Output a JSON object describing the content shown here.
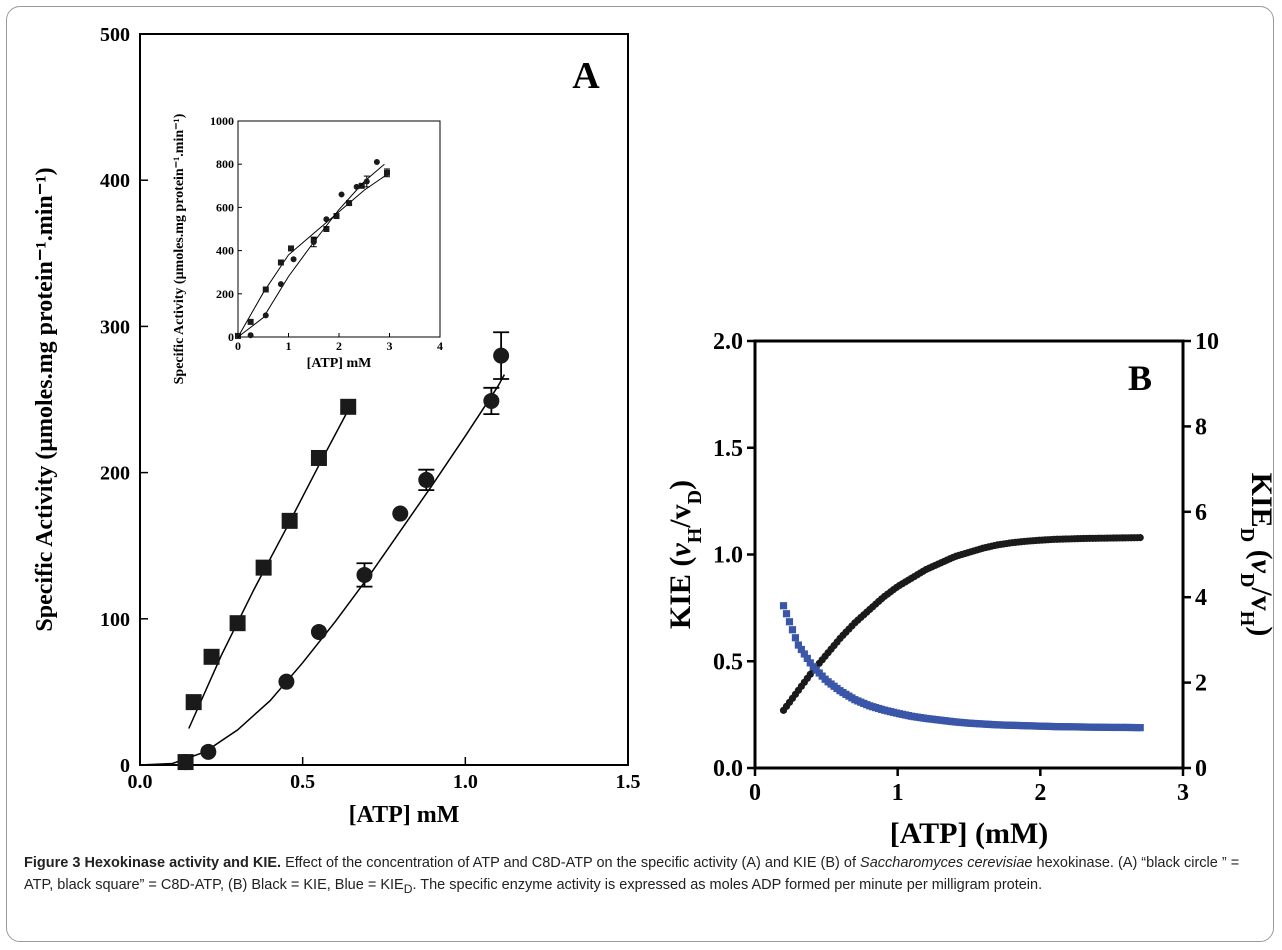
{
  "caption": {
    "label": "Figure 3",
    "title": "Hexokinase activity and KIE",
    "sep": ".",
    "p1": " Effect of the concentration of ATP and C8D-ATP on the specific activity (A) and KIE (B) of ",
    "species": "Saccharomyces cerevisiae",
    "p2": " hexokinase. (A) “black circle ” = ATP, black square” = C8D-ATP, (B) Black = KIE, Blue = KIE",
    "sub_d": "D",
    "p3": ". The specific enzyme activity is expressed as moles ADP formed per minute per milligram protein."
  },
  "chart_data": [
    {
      "id": "A",
      "type": "scatter",
      "panel_label": "A",
      "xlabel": "[ATP] mM",
      "ylabel": "Specific Activity (μmoles.mg protein⁻¹.min⁻¹)",
      "xlim": [
        0.0,
        1.5
      ],
      "ylim": [
        0,
        500
      ],
      "xticks": [
        0.0,
        0.5,
        1.0,
        1.5
      ],
      "xtick_labels": [
        "0.0",
        "0.5",
        "1.0",
        "1.5"
      ],
      "yticks": [
        0,
        100,
        200,
        300,
        400,
        500
      ],
      "ytick_labels": [
        "0",
        "100",
        "200",
        "300",
        "400",
        "500"
      ],
      "series": [
        {
          "marker": "square",
          "x": [
            0.14,
            0.165,
            0.22,
            0.3,
            0.38,
            0.46,
            0.55,
            0.64
          ],
          "y": [
            2,
            43,
            74,
            97,
            135,
            167,
            210,
            245
          ],
          "fit_x": [
            0.15,
            0.25,
            0.35,
            0.45,
            0.55,
            0.65
          ],
          "fit_y": [
            25,
            75,
            120,
            162,
            205,
            247
          ]
        },
        {
          "marker": "circle",
          "x": [
            0.14,
            0.21,
            0.45,
            0.55,
            0.69,
            0.8,
            0.88,
            1.08,
            1.11
          ],
          "y": [
            2,
            9,
            57,
            91,
            130,
            172,
            195,
            249,
            280
          ],
          "err": [
            0,
            0,
            0,
            0,
            8,
            0,
            7,
            9,
            16
          ],
          "fit_x": [
            0.0,
            0.1,
            0.2,
            0.3,
            0.4,
            0.5,
            0.6,
            0.7,
            0.8,
            0.9,
            1.0,
            1.1,
            1.12
          ],
          "fit_y": [
            0,
            1,
            9,
            24,
            44,
            70,
            98,
            128,
            160,
            192,
            225,
            259,
            267
          ]
        }
      ],
      "inset": {
        "type": "scatter",
        "xlabel": "[ATP] mM",
        "ylabel": "Specific Activity (μmoles.mg protein⁻¹.min⁻¹)",
        "xlim": [
          0,
          4
        ],
        "ylim": [
          0,
          1000
        ],
        "xticks": [
          0,
          1,
          2,
          3,
          4
        ],
        "xtick_labels": [
          "0",
          "1",
          "2",
          "3",
          "4"
        ],
        "yticks": [
          0,
          200,
          400,
          600,
          800,
          1000
        ],
        "ytick_labels": [
          "0",
          "200",
          "400",
          "600",
          "800",
          "1000"
        ],
        "series": [
          {
            "marker": "square",
            "x": [
              0.0,
              0.25,
              0.55,
              0.85,
              1.05,
              1.5,
              1.75,
              1.95,
              2.2,
              2.45,
              2.95
            ],
            "y": [
              5,
              70,
              220,
              345,
              410,
              450,
              500,
              560,
              620,
              700,
              760
            ],
            "err": [
              0,
              0,
              0,
              0,
              0,
              0,
              0,
              0,
              0,
              0,
              18
            ],
            "fit_x": [
              0.0,
              0.5,
              1.0,
              1.5,
              2.0,
              2.5,
              3.0
            ],
            "fit_y": [
              0,
              205,
              380,
              480,
              580,
              680,
              760
            ]
          },
          {
            "marker": "circle",
            "x": [
              0.25,
              0.55,
              0.85,
              1.1,
              1.5,
              1.75,
              2.05,
              2.35,
              2.55,
              2.75
            ],
            "y": [
              8,
              100,
              245,
              360,
              440,
              545,
              660,
              695,
              720,
              810
            ],
            "err": [
              0,
              0,
              0,
              0,
              22,
              0,
              0,
              0,
              25,
              0
            ],
            "fit_x": [
              0.0,
              0.5,
              1.0,
              1.5,
              2.0,
              2.5,
              2.9
            ],
            "fit_y": [
              0,
              90,
              280,
              440,
              590,
              720,
              800
            ]
          }
        ]
      }
    },
    {
      "id": "B",
      "type": "scatter",
      "panel_label": "B",
      "xlabel": "[ATP] (mM)",
      "ylabel_left": "KIE (v_H/v_D)",
      "ylabel_right": "KIE_D (v_D/v_H)",
      "xlim": [
        0,
        3
      ],
      "ylim_left": [
        0.0,
        2.0
      ],
      "ylim_right": [
        0,
        10
      ],
      "xticks": [
        0,
        1,
        2,
        3
      ],
      "xtick_labels": [
        "0",
        "1",
        "2",
        "3"
      ],
      "yticks_left": [
        0.0,
        0.5,
        1.0,
        1.5,
        2.0
      ],
      "ytick_labels_left": [
        "0.0",
        "0.5",
        "1.0",
        "1.5",
        "2.0"
      ],
      "yticks_right": [
        0,
        2,
        4,
        6,
        8,
        10
      ],
      "ytick_labels_right": [
        "0",
        "2",
        "4",
        "6",
        "8",
        "10"
      ],
      "series": [
        {
          "color": "#1a1a1a",
          "axis": "left",
          "marker": "circle",
          "x": [
            0.2,
            0.3,
            0.4,
            0.5,
            0.6,
            0.7,
            0.8,
            0.9,
            1.0,
            1.1,
            1.2,
            1.3,
            1.4,
            1.5,
            1.6,
            1.7,
            1.8,
            1.9,
            2.0,
            2.1,
            2.2,
            2.3,
            2.4,
            2.5,
            2.6,
            2.7
          ],
          "y": [
            0.27,
            0.36,
            0.45,
            0.53,
            0.61,
            0.68,
            0.74,
            0.8,
            0.85,
            0.89,
            0.93,
            0.96,
            0.99,
            1.01,
            1.03,
            1.045,
            1.055,
            1.062,
            1.067,
            1.071,
            1.073,
            1.075,
            1.076,
            1.077,
            1.078,
            1.079
          ]
        },
        {
          "color": "#3a56a8",
          "axis": "right",
          "marker": "square",
          "x": [
            0.2,
            0.3,
            0.4,
            0.5,
            0.6,
            0.7,
            0.8,
            0.9,
            1.0,
            1.1,
            1.2,
            1.3,
            1.4,
            1.5,
            1.6,
            1.7,
            1.8,
            1.9,
            2.0,
            2.1,
            2.2,
            2.3,
            2.4,
            2.5,
            2.6,
            2.7
          ],
          "y": [
            3.8,
            2.9,
            2.4,
            2.05,
            1.8,
            1.6,
            1.46,
            1.36,
            1.28,
            1.21,
            1.16,
            1.12,
            1.08,
            1.05,
            1.03,
            1.01,
            1.0,
            0.99,
            0.98,
            0.97,
            0.965,
            0.96,
            0.955,
            0.95,
            0.95,
            0.945
          ]
        }
      ]
    }
  ]
}
